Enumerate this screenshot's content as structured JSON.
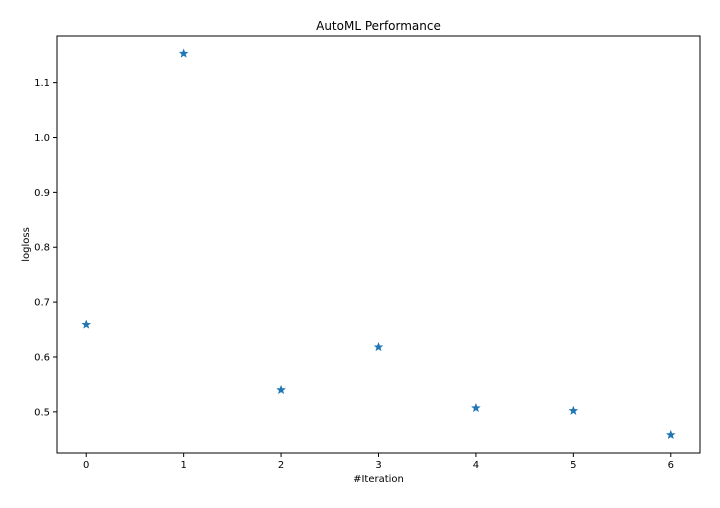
{
  "chart_data": {
    "type": "scatter",
    "title": "AutoML Performance",
    "xlabel": "#Iteration",
    "ylabel": "logloss",
    "xlim": [
      -0.3,
      6.3
    ],
    "ylim": [
      0.425,
      1.185
    ],
    "xticks": [
      0,
      1,
      2,
      3,
      4,
      5,
      6
    ],
    "yticks": [
      0.5,
      0.6,
      0.7,
      0.8,
      0.9,
      1.0,
      1.1
    ],
    "ytick_labels": [
      "0.5",
      "0.6",
      "0.7",
      "0.8",
      "0.9",
      "1.0",
      "1.1"
    ],
    "grid": false,
    "marker": "star",
    "color": "#1f77b4",
    "series": [
      {
        "x": [
          0,
          1,
          2,
          3,
          4,
          5,
          6
        ],
        "values": [
          0.659,
          1.153,
          0.54,
          0.618,
          0.507,
          0.502,
          0.458
        ]
      }
    ]
  }
}
